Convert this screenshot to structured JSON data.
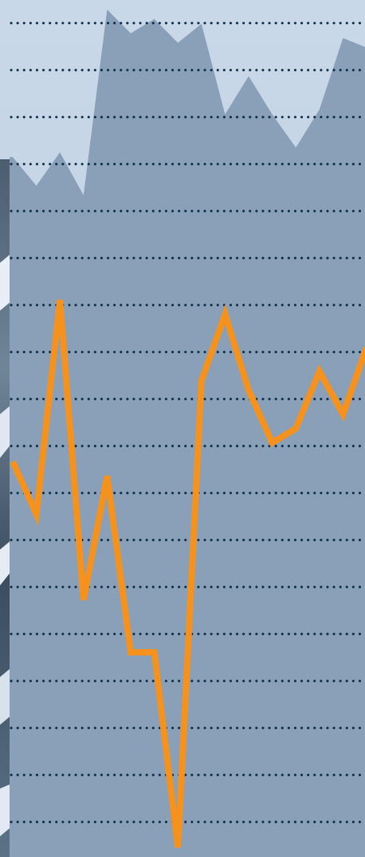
{
  "chart_data": {
    "type": "area",
    "title": "",
    "xlabel": "",
    "ylabel": "",
    "ylim": [
      0,
      18
    ],
    "grid": "horizontal-dotted",
    "x": [
      1,
      2,
      3,
      4,
      5,
      6,
      7,
      8,
      9,
      10,
      11,
      12,
      13,
      14,
      15,
      16
    ],
    "series": [
      {
        "role": "area",
        "color": "#8aa0b8",
        "values": [
          14.7,
          14.1,
          14.8,
          13.9,
          17.8,
          17.3,
          17.6,
          17.1,
          17.5,
          15.6,
          16.4,
          15.6,
          14.9,
          15.7,
          17.2,
          17.0
        ]
      },
      {
        "role": "line",
        "color": "#f5921e",
        "values": [
          8.3,
          7.2,
          11.7,
          5.4,
          8.0,
          4.3,
          4.3,
          0.2,
          10.0,
          11.4,
          9.8,
          8.7,
          9.0,
          10.2,
          9.3,
          10.7
        ]
      }
    ]
  },
  "colors": {
    "sky": "#c6d6e6",
    "gridline": "#0b2a44",
    "background_photo_blend": "#7d94ab"
  }
}
